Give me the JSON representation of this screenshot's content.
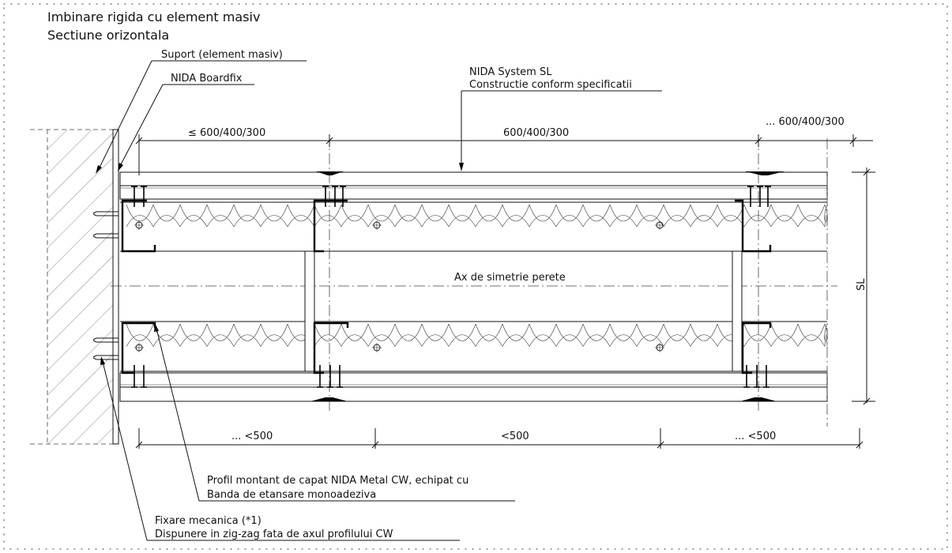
{
  "title": {
    "line1": "Imbinare rigida cu element masiv",
    "line2": "Sectiune orizontala"
  },
  "labels": {
    "support": "Suport (element masiv)",
    "boardfix": "NIDA Boardfix",
    "system": "NIDA System SL",
    "construction": "Constructie conform specificatii",
    "axis": "Ax de simetrie perete",
    "sl": "SL",
    "profile_line1": "Profil montant de capat NIDA Metal CW, echipat cu",
    "profile_line2": "Banda de etansare monoadeziva",
    "fixing_line1": "Fixare mecanica (*1)",
    "fixing_line2": "Dispunere in zig-zag fata de axul profilului CW"
  },
  "dimensions": {
    "top": [
      "≤ 600/400/300",
      "600/400/300",
      "... 600/400/300"
    ],
    "bottom": [
      "... <500",
      "<500",
      "... <500"
    ]
  }
}
